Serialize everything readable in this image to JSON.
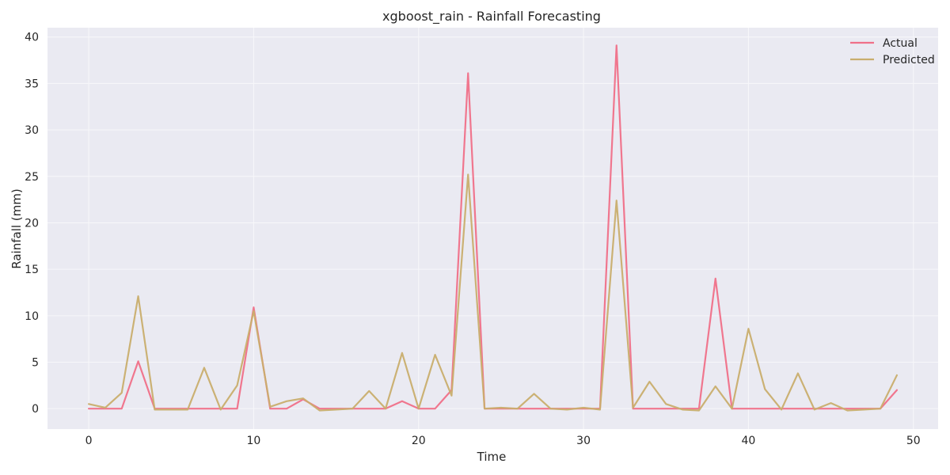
{
  "chart_data": {
    "type": "line",
    "title": "xgboost_rain - Rainfall Forecasting",
    "xlabel": "Time",
    "ylabel": "Rainfall (mm)",
    "xlim": [
      -2.5,
      51.5
    ],
    "ylim": [
      -2.2,
      41
    ],
    "xticks": [
      0,
      10,
      20,
      30,
      40,
      50
    ],
    "yticks": [
      0,
      5,
      10,
      15,
      20,
      25,
      30,
      35,
      40
    ],
    "grid": true,
    "legend_position": "top-right",
    "x": [
      0,
      1,
      2,
      3,
      4,
      5,
      6,
      7,
      8,
      9,
      10,
      11,
      12,
      13,
      14,
      15,
      16,
      17,
      18,
      19,
      20,
      21,
      22,
      23,
      24,
      25,
      26,
      27,
      28,
      29,
      30,
      31,
      32,
      33,
      34,
      35,
      36,
      37,
      38,
      39,
      40,
      41,
      42,
      43,
      44,
      45,
      46,
      47,
      48,
      49
    ],
    "series": [
      {
        "name": "Actual",
        "color": "#f07088",
        "values": [
          0,
          0,
          0,
          5.1,
          0,
          0,
          0,
          0,
          0,
          0,
          10.9,
          0,
          0,
          1.0,
          0,
          0,
          0,
          0,
          0,
          0.8,
          0,
          0,
          2.0,
          36.1,
          0,
          0,
          0,
          0,
          0,
          0,
          0,
          0,
          39.1,
          0,
          0,
          0,
          0,
          0,
          14.0,
          0,
          0,
          0,
          0,
          0,
          0,
          0,
          0,
          0,
          0,
          2.0
        ]
      },
      {
        "name": "Predicted",
        "color": "#c9ae6d",
        "values": [
          0.5,
          0.1,
          1.7,
          12.1,
          -0.1,
          -0.1,
          -0.1,
          4.4,
          -0.1,
          2.5,
          10.5,
          0.2,
          0.8,
          1.1,
          -0.2,
          -0.1,
          0,
          1.9,
          0,
          6.0,
          0,
          5.8,
          1.4,
          25.2,
          0,
          0.1,
          0,
          1.6,
          0,
          -0.1,
          0.1,
          -0.1,
          22.4,
          0.1,
          2.9,
          0.5,
          -0.1,
          -0.2,
          2.4,
          0,
          8.6,
          2.1,
          -0.1,
          3.8,
          -0.1,
          0.6,
          -0.2,
          -0.1,
          0,
          3.6
        ]
      }
    ]
  },
  "colors": {
    "plot_background": "#eaeaf2",
    "grid": "#f7f7fa"
  }
}
